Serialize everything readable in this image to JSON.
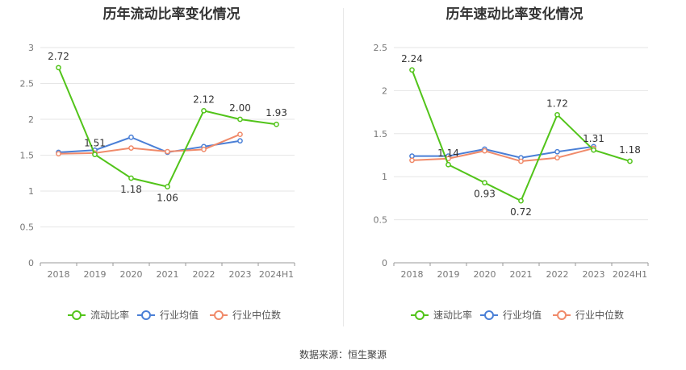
{
  "chart_data": [
    {
      "type": "line",
      "title": "历年流动比率变化情况",
      "categories": [
        "2018",
        "2019",
        "2020",
        "2021",
        "2022",
        "2023",
        "2024H1"
      ],
      "ylim": [
        0,
        3
      ],
      "yticks": [
        "0",
        "0.5",
        "1",
        "1.5",
        "2",
        "2.5",
        "3"
      ],
      "grid": true,
      "legend_position": "bottom",
      "series": [
        {
          "name": "流动比率",
          "color": "#52c41a",
          "values": [
            2.72,
            1.51,
            1.18,
            1.06,
            2.12,
            2.0,
            1.93
          ],
          "labels": [
            "2.72",
            "1.51",
            "1.18",
            "1.06",
            "2.12",
            "2.00",
            "1.93"
          ]
        },
        {
          "name": "行业均值",
          "color": "#4a7fd6",
          "values": [
            1.54,
            1.57,
            1.75,
            1.54,
            1.62,
            1.7,
            null
          ]
        },
        {
          "name": "行业中位数",
          "color": "#f08a6a",
          "values": [
            1.52,
            1.53,
            1.6,
            1.55,
            1.58,
            1.79,
            null
          ]
        }
      ]
    },
    {
      "type": "line",
      "title": "历年速动比率变化情况",
      "categories": [
        "2018",
        "2019",
        "2020",
        "2021",
        "2022",
        "2023",
        "2024H1"
      ],
      "ylim": [
        0,
        2.5
      ],
      "yticks": [
        "0",
        "0.5",
        "1",
        "1.5",
        "2",
        "2.5"
      ],
      "grid": true,
      "legend_position": "bottom",
      "series": [
        {
          "name": "速动比率",
          "color": "#52c41a",
          "values": [
            2.24,
            1.14,
            0.93,
            0.72,
            1.72,
            1.31,
            1.18
          ],
          "labels": [
            "2.24",
            "1.14",
            "0.93",
            "0.72",
            "1.72",
            "1.31",
            "1.18"
          ]
        },
        {
          "name": "行业均值",
          "color": "#4a7fd6",
          "values": [
            1.24,
            1.24,
            1.32,
            1.22,
            1.29,
            1.35,
            null
          ]
        },
        {
          "name": "行业中位数",
          "color": "#f08a6a",
          "values": [
            1.19,
            1.21,
            1.3,
            1.18,
            1.22,
            1.33,
            null
          ]
        }
      ]
    }
  ],
  "source": "数据来源：恒生聚源"
}
